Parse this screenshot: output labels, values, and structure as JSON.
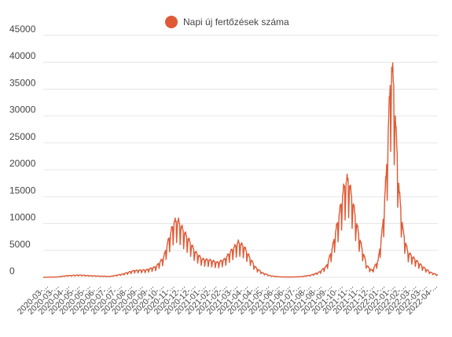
{
  "chart_data": {
    "type": "line",
    "title": "",
    "xlabel": "",
    "ylabel": "",
    "legend": {
      "position": "top-center"
    },
    "grid": {
      "horizontal": true,
      "vertical": false
    },
    "colors": {
      "series": "#DF5A35",
      "grid": "#E6E6E6",
      "text": "#444444"
    },
    "ylim": [
      0,
      45000
    ],
    "y_ticks": [
      "45000",
      "40000",
      "35000",
      "30000",
      "25000",
      "20000",
      "15000",
      "10000",
      "5000",
      "0"
    ],
    "x_tick_labels": [
      "2020-03-...",
      "2020-03-...",
      "2020-04-...",
      "2020-05-...",
      "2020-05-...",
      "2020-06-...",
      "2020-07-...",
      "2020-07-...",
      "2020-08-...",
      "2020-09-...",
      "2020-09-...",
      "2020-10-...",
      "2020-11-...",
      "2020-12-...",
      "2020-12-...",
      "2021-01-...",
      "2021-02-...",
      "2021-02-...",
      "2021-03-...",
      "2021-04-...",
      "2021-04-...",
      "2021-05-...",
      "2021-06-...",
      "2021-06-...",
      "2021-07-...",
      "2021-08-...",
      "2021-08-...",
      "2021-09-...",
      "2021-10-...",
      "2021-11-...",
      "2021-11-...",
      "2021-12-...",
      "2022-01-...",
      "2022-01-...",
      "2022-02-...",
      "2022-03-...",
      "2022-03-...",
      "2022-04-..."
    ],
    "x_range": [
      "2020-03-04",
      "2022-04-30"
    ],
    "series": [
      {
        "name": "Napi új fertőzések száma",
        "points": [
          [
            "2020-03-04",
            0
          ],
          [
            "2020-04-01",
            60
          ],
          [
            "2020-04-20",
            300
          ],
          [
            "2020-05-15",
            400
          ],
          [
            "2020-06-15",
            250
          ],
          [
            "2020-07-15",
            150
          ],
          [
            "2020-08-10",
            600
          ],
          [
            "2020-09-01",
            1200
          ],
          [
            "2020-09-25",
            1300
          ],
          [
            "2020-10-15",
            1900
          ],
          [
            "2020-10-30",
            3500
          ],
          [
            "2020-11-10",
            7000
          ],
          [
            "2020-11-20",
            9800
          ],
          [
            "2020-11-28",
            10000
          ],
          [
            "2020-12-10",
            8000
          ],
          [
            "2020-12-20",
            6500
          ],
          [
            "2021-01-01",
            4500
          ],
          [
            "2021-01-15",
            3200
          ],
          [
            "2021-02-01",
            3000
          ],
          [
            "2021-02-15",
            2600
          ],
          [
            "2021-03-01",
            3200
          ],
          [
            "2021-03-15",
            4800
          ],
          [
            "2021-03-28",
            6200
          ],
          [
            "2021-04-08",
            5500
          ],
          [
            "2021-04-20",
            3500
          ],
          [
            "2021-05-01",
            1800
          ],
          [
            "2021-05-15",
            800
          ],
          [
            "2021-06-01",
            250
          ],
          [
            "2021-06-20",
            80
          ],
          [
            "2021-07-10",
            50
          ],
          [
            "2021-08-01",
            120
          ],
          [
            "2021-08-20",
            400
          ],
          [
            "2021-09-05",
            900
          ],
          [
            "2021-09-20",
            2000
          ],
          [
            "2021-10-01",
            5000
          ],
          [
            "2021-10-15",
            11000
          ],
          [
            "2021-10-25",
            16000
          ],
          [
            "2021-11-02",
            17500
          ],
          [
            "2021-11-10",
            14000
          ],
          [
            "2021-11-20",
            9000
          ],
          [
            "2021-11-30",
            5000
          ],
          [
            "2021-12-10",
            2000
          ],
          [
            "2021-12-20",
            1200
          ],
          [
            "2022-01-01",
            3000
          ],
          [
            "2022-01-10",
            9000
          ],
          [
            "2022-01-17",
            18000
          ],
          [
            "2022-01-23",
            30000
          ],
          [
            "2022-01-27",
            38000
          ],
          [
            "2022-02-01",
            34000
          ],
          [
            "2022-02-06",
            25000
          ],
          [
            "2022-02-12",
            15000
          ],
          [
            "2022-02-20",
            8000
          ],
          [
            "2022-03-01",
            4500
          ],
          [
            "2022-03-15",
            3200
          ],
          [
            "2022-04-01",
            1800
          ],
          [
            "2022-04-15",
            900
          ],
          [
            "2022-04-30",
            400
          ]
        ]
      }
    ]
  }
}
